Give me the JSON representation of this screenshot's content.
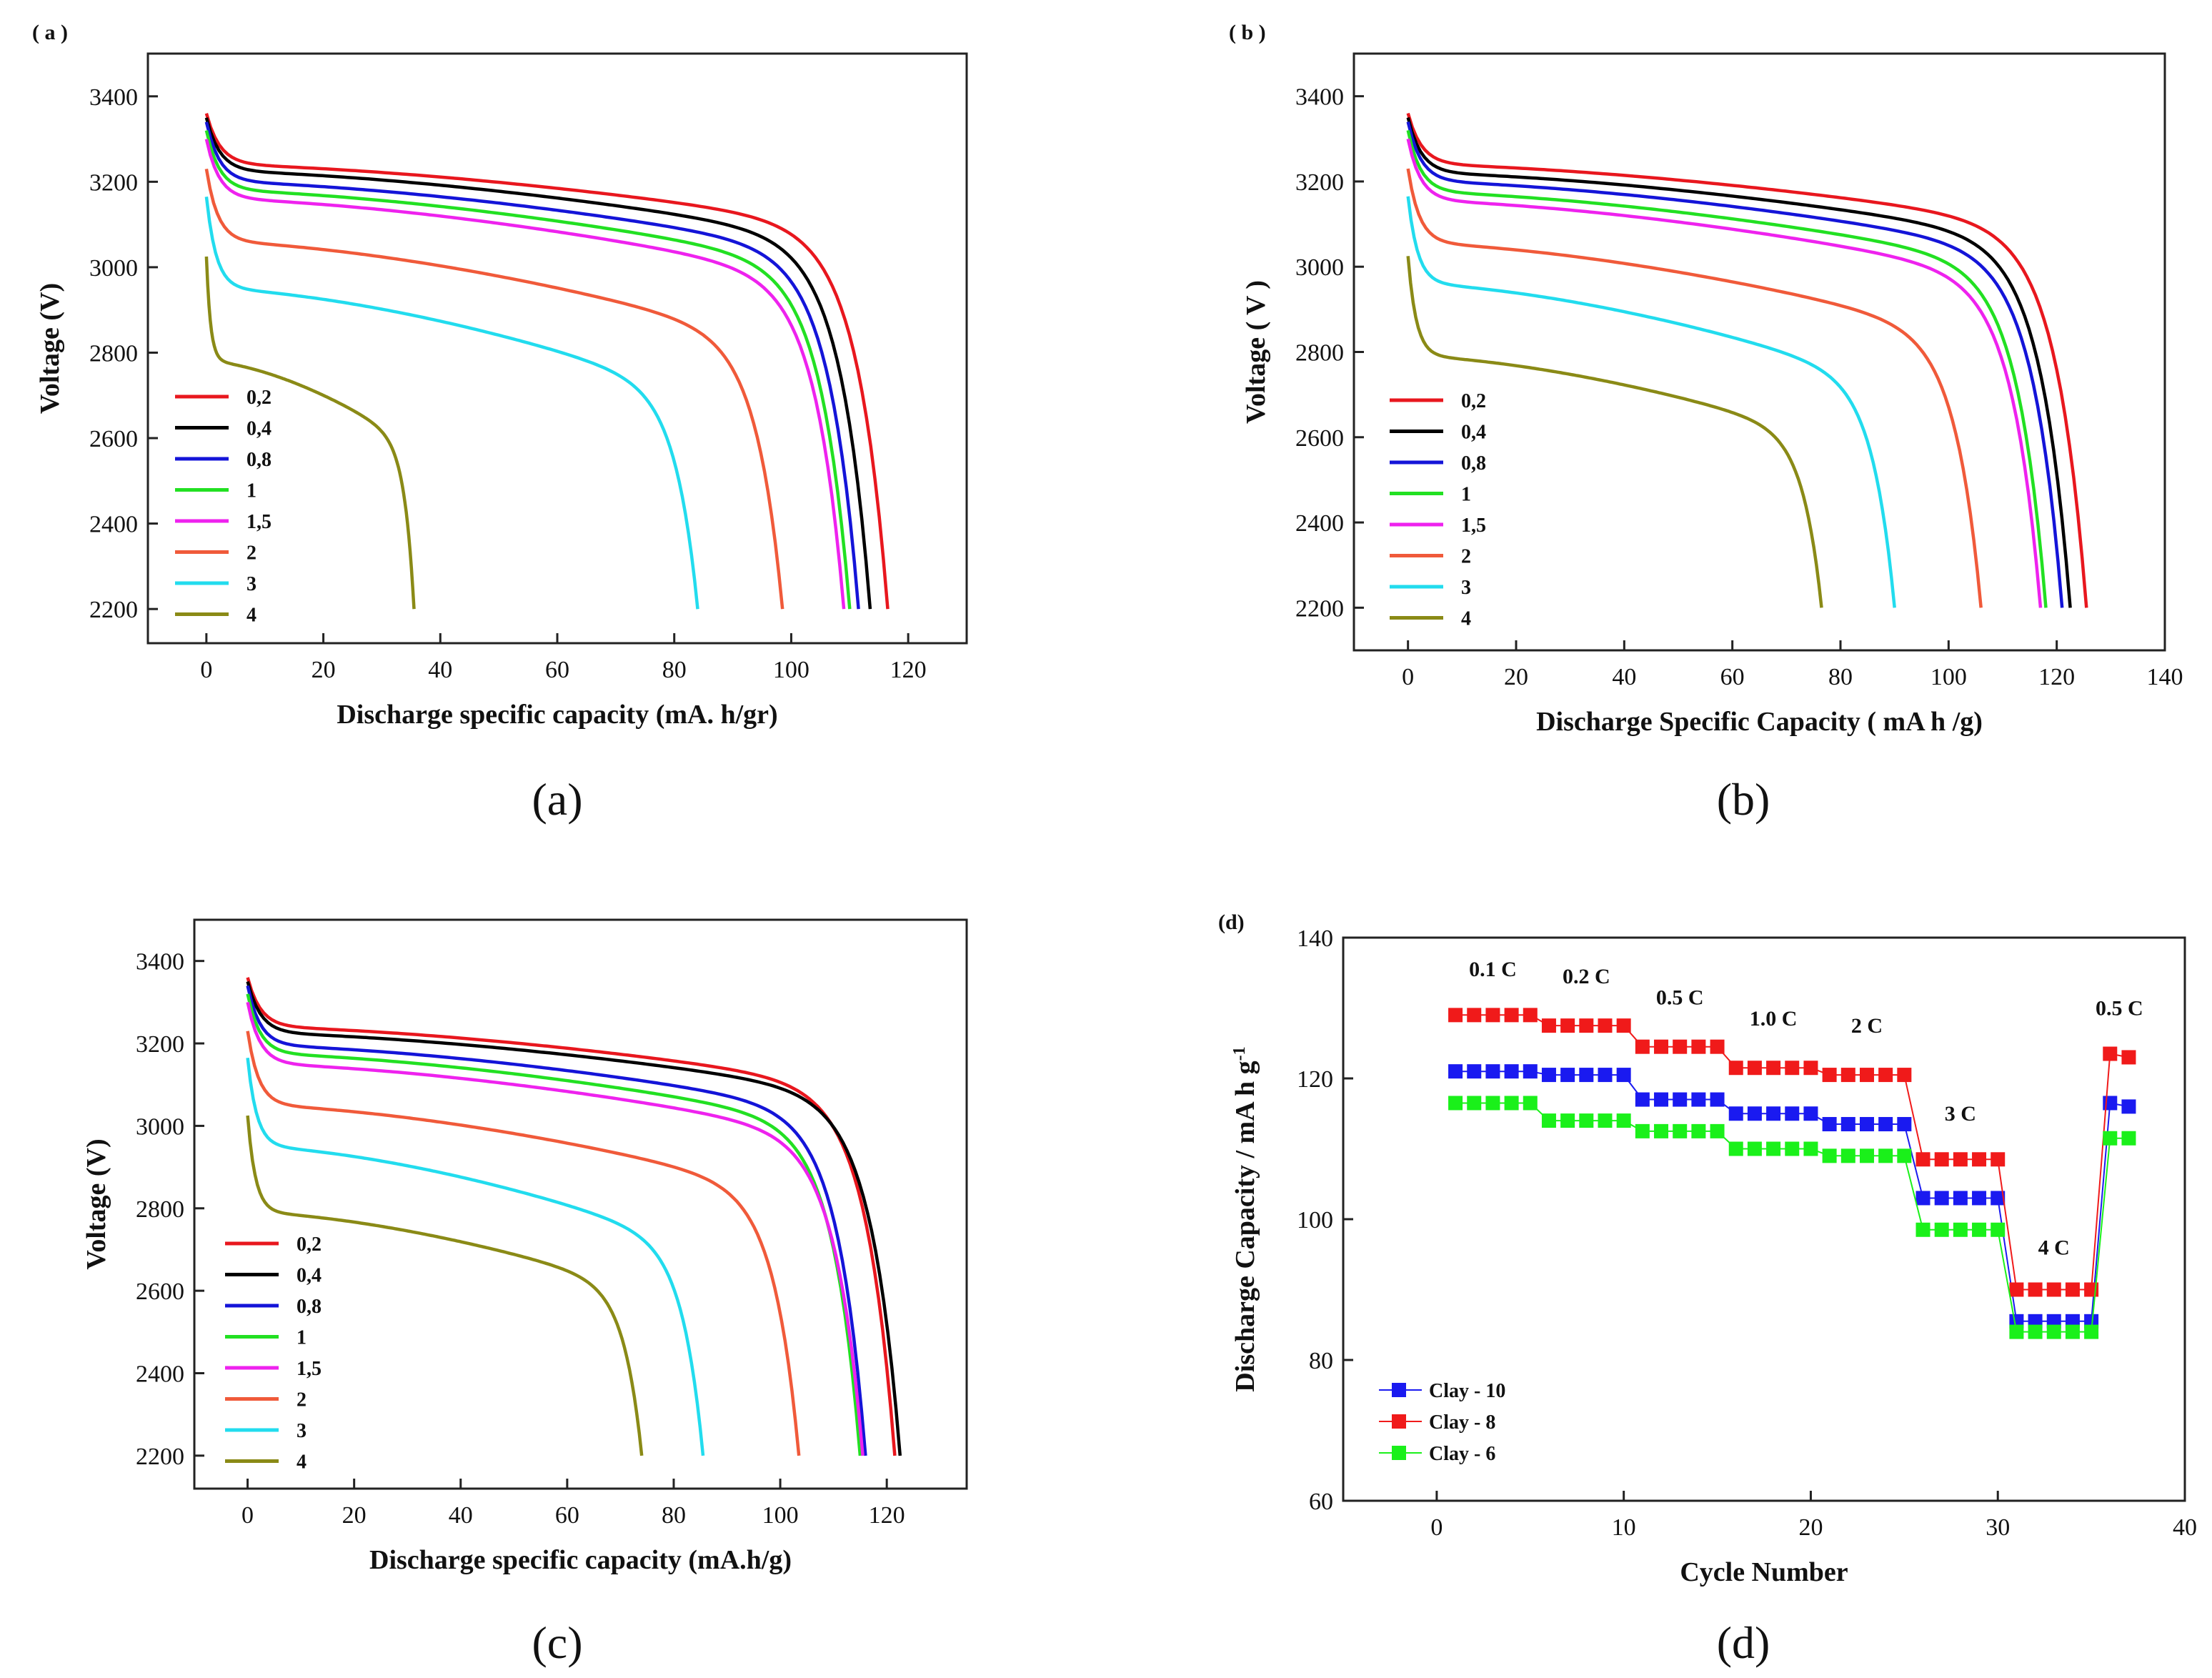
{
  "chart_data": [
    {
      "id": "a",
      "type": "line",
      "panel_label": "( a )",
      "caption": "(a)",
      "xlabel": "Discharge specific capacity (mA. h/gr)",
      "ylabel": "Voltage (V)",
      "xlim": [
        -10,
        130
      ],
      "ylim": [
        2120,
        3500
      ],
      "xticks": [
        0,
        20,
        40,
        60,
        80,
        100,
        120
      ],
      "yticks": [
        2200,
        2400,
        2600,
        2800,
        3000,
        3200,
        3400
      ],
      "series": [
        {
          "name": "0,2",
          "color": "#e8171e",
          "start": 3360,
          "plateau": 3240,
          "mid": 3080,
          "end_cap": 116.5
        },
        {
          "name": "0,4",
          "color": "#000000",
          "start": 3350,
          "plateau": 3225,
          "mid": 3050,
          "end_cap": 113.5
        },
        {
          "name": "0,8",
          "color": "#1414d8",
          "start": 3340,
          "plateau": 3200,
          "mid": 3020,
          "end_cap": 111.5
        },
        {
          "name": "1",
          "color": "#22e022",
          "start": 3320,
          "plateau": 3180,
          "mid": 2990,
          "end_cap": 110
        },
        {
          "name": "1,5",
          "color": "#ee22ee",
          "start": 3300,
          "plateau": 3160,
          "mid": 2960,
          "end_cap": 109
        },
        {
          "name": "2",
          "color": "#f05a3a",
          "start": 3230,
          "plateau": 3060,
          "mid": 2820,
          "end_cap": 98.5
        },
        {
          "name": "3",
          "color": "#22dcee",
          "start": 3165,
          "plateau": 2950,
          "mid": 2700,
          "end_cap": 84
        },
        {
          "name": "4",
          "color": "#8a8a16",
          "start": 3025,
          "plateau": 2780,
          "mid": 2580,
          "end_cap": 35.5
        }
      ]
    },
    {
      "id": "b",
      "type": "line",
      "panel_label": "( b )",
      "caption": "(b)",
      "xlabel": "Discharge Specific Capacity ( mA h /g)",
      "ylabel": "Voltage ( V )",
      "xlim": [
        -10,
        140
      ],
      "ylim": [
        2100,
        3500
      ],
      "xticks": [
        0,
        20,
        40,
        60,
        80,
        100,
        120,
        140
      ],
      "yticks": [
        2200,
        2400,
        2600,
        2800,
        3000,
        3200,
        3400
      ],
      "series": [
        {
          "name": "0,2",
          "color": "#e8171e",
          "start": 3360,
          "plateau": 3240,
          "mid": 3080,
          "end_cap": 125.5
        },
        {
          "name": "0,4",
          "color": "#000000",
          "start": 3350,
          "plateau": 3220,
          "mid": 3050,
          "end_cap": 122.5
        },
        {
          "name": "0,8",
          "color": "#1414d8",
          "start": 3340,
          "plateau": 3200,
          "mid": 3020,
          "end_cap": 121
        },
        {
          "name": "1",
          "color": "#22e022",
          "start": 3320,
          "plateau": 3175,
          "mid": 2990,
          "end_cap": 118
        },
        {
          "name": "1,5",
          "color": "#ee22ee",
          "start": 3300,
          "plateau": 3155,
          "mid": 2960,
          "end_cap": 117
        },
        {
          "name": "2",
          "color": "#f05a3a",
          "start": 3230,
          "plateau": 3055,
          "mid": 2830,
          "end_cap": 106
        },
        {
          "name": "3",
          "color": "#22dcee",
          "start": 3165,
          "plateau": 2960,
          "mid": 2720,
          "end_cap": 90
        },
        {
          "name": "4",
          "color": "#8a8a16",
          "start": 3025,
          "plateau": 2790,
          "mid": 2600,
          "end_cap": 76.5
        }
      ]
    },
    {
      "id": "c",
      "type": "line",
      "panel_label": "",
      "caption": "(c)",
      "xlabel": "Discharge specific capacity (mA.h/g)",
      "ylabel": "Voltage (V)",
      "xlim": [
        -10,
        135
      ],
      "ylim": [
        2120,
        3500
      ],
      "xticks": [
        0,
        20,
        40,
        60,
        80,
        100,
        120
      ],
      "yticks": [
        2200,
        2400,
        2600,
        2800,
        3000,
        3200,
        3400
      ],
      "series": [
        {
          "name": "0,2",
          "color": "#e8171e",
          "start": 3360,
          "plateau": 3240,
          "mid": 3080,
          "end_cap": 121.5
        },
        {
          "name": "0,4",
          "color": "#000000",
          "start": 3350,
          "plateau": 3225,
          "mid": 3060,
          "end_cap": 122.5
        },
        {
          "name": "0,8",
          "color": "#1414d8",
          "start": 3340,
          "plateau": 3195,
          "mid": 3020,
          "end_cap": 116
        },
        {
          "name": "1",
          "color": "#22e022",
          "start": 3320,
          "plateau": 3175,
          "mid": 2990,
          "end_cap": 115
        },
        {
          "name": "1,5",
          "color": "#ee22ee",
          "start": 3300,
          "plateau": 3150,
          "mid": 2960,
          "end_cap": 115.5
        },
        {
          "name": "2",
          "color": "#f05a3a",
          "start": 3230,
          "plateau": 3050,
          "mid": 2830,
          "end_cap": 103.5
        },
        {
          "name": "3",
          "color": "#22dcee",
          "start": 3165,
          "plateau": 2950,
          "mid": 2700,
          "end_cap": 85.5
        },
        {
          "name": "4",
          "color": "#8a8a16",
          "start": 3025,
          "plateau": 2790,
          "mid": 2600,
          "end_cap": 74
        }
      ]
    },
    {
      "id": "d",
      "type": "scatter",
      "panel_label": "(d)",
      "caption": "(d)",
      "xlabel": "Cycle Number",
      "ylabel": "Discharge Capacity / mA h g",
      "ylabel_sup": "-1",
      "xlim": [
        -5,
        40
      ],
      "ylim": [
        60,
        140
      ],
      "xticks": [
        0,
        10,
        20,
        30,
        40
      ],
      "yticks": [
        60,
        80,
        100,
        120,
        140
      ],
      "x": [
        1,
        2,
        3,
        4,
        5,
        6,
        7,
        8,
        9,
        10,
        11,
        12,
        13,
        14,
        15,
        16,
        17,
        18,
        19,
        20,
        21,
        22,
        23,
        24,
        25,
        26,
        27,
        28,
        29,
        30,
        31,
        32,
        33,
        34,
        35,
        36,
        37
      ],
      "series": [
        {
          "name": "Clay - 10",
          "color": "#1a1af0",
          "values": [
            121,
            121,
            121,
            121,
            121,
            120.5,
            120.5,
            120.5,
            120.5,
            120.5,
            117,
            117,
            117,
            117,
            117,
            115,
            115,
            115,
            115,
            115,
            113.5,
            113.5,
            113.5,
            113.5,
            113.5,
            103,
            103,
            103,
            103,
            103,
            85.5,
            85.5,
            85.5,
            85.5,
            85.5,
            116.5,
            116
          ]
        },
        {
          "name": "Clay - 8",
          "color": "#f01a1a",
          "values": [
            129,
            129,
            129,
            129,
            129,
            127.5,
            127.5,
            127.5,
            127.5,
            127.5,
            124.5,
            124.5,
            124.5,
            124.5,
            124.5,
            121.5,
            121.5,
            121.5,
            121.5,
            121.5,
            120.5,
            120.5,
            120.5,
            120.5,
            120.5,
            108.5,
            108.5,
            108.5,
            108.5,
            108.5,
            90,
            90,
            90,
            90,
            90,
            123.5,
            123
          ]
        },
        {
          "name": "Clay - 6",
          "color": "#1af01a",
          "values": [
            116.5,
            116.5,
            116.5,
            116.5,
            116.5,
            114,
            114,
            114,
            114,
            114,
            112.5,
            112.5,
            112.5,
            112.5,
            112.5,
            110,
            110,
            110,
            110,
            110,
            109,
            109,
            109,
            109,
            109,
            98.5,
            98.5,
            98.5,
            98.5,
            98.5,
            84,
            84,
            84,
            84,
            84,
            111.5,
            111.5
          ]
        }
      ],
      "annotations": [
        {
          "text": "0.1 C",
          "x": 3,
          "y": 134.5
        },
        {
          "text": "0.2 C",
          "x": 8,
          "y": 133.5
        },
        {
          "text": "0.5 C",
          "x": 13,
          "y": 130.5
        },
        {
          "text": "1.0 C",
          "x": 18,
          "y": 127.5
        },
        {
          "text": "2 C",
          "x": 23,
          "y": 126.5
        },
        {
          "text": "3 C",
          "x": 28,
          "y": 114
        },
        {
          "text": "4 C",
          "x": 33,
          "y": 95
        },
        {
          "text": "0.5 C",
          "x": 36.5,
          "y": 129
        }
      ]
    }
  ]
}
